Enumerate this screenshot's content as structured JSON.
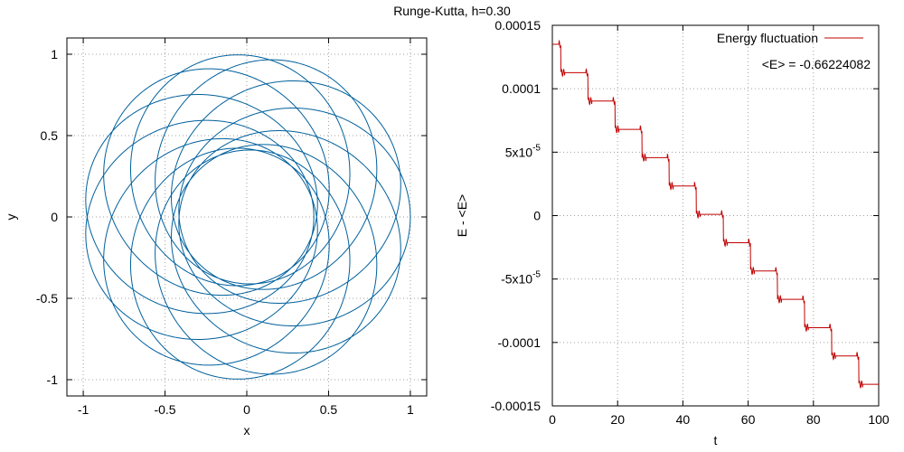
{
  "title": "Runge-Kutta, h=0.30",
  "chart_data": [
    {
      "type": "line",
      "xlabel": "x",
      "ylabel": "y",
      "xlim": [
        -1.1,
        1.1
      ],
      "ylim": [
        -1.1,
        1.1
      ],
      "xticks": [
        -1,
        -0.5,
        0,
        0.5,
        1
      ],
      "xtick_labels": [
        "-1",
        "-0.5",
        "0",
        "0.5",
        "1"
      ],
      "yticks": [
        -1,
        -0.5,
        0,
        0.5,
        1
      ],
      "ytick_labels": [
        "-1",
        "-0.5",
        "0",
        "0.5",
        "1"
      ],
      "grid": true,
      "series": [
        {
          "color": "#00609c",
          "orbit": {
            "aphelion": 1.0,
            "perihelion": 0.41,
            "start_angle_deg": 0,
            "precession_deg_per_orbit": 30,
            "revolutions": 12
          }
        }
      ]
    },
    {
      "type": "line",
      "xlabel": "t",
      "ylabel": "E - <E>",
      "xlim": [
        0,
        100
      ],
      "ylim": [
        -0.00015,
        0.00015
      ],
      "xticks": [
        0,
        20,
        40,
        60,
        80,
        100
      ],
      "xtick_labels": [
        "0",
        "20",
        "40",
        "60",
        "80",
        "100"
      ],
      "yticks": [
        0.00015,
        0.0001,
        5e-05,
        0,
        -5e-05,
        -0.0001,
        -0.00015
      ],
      "ytick_labels": [
        {
          "base": "0.00015",
          "exp": ""
        },
        {
          "base": "0.0001",
          "exp": ""
        },
        {
          "base": "5x10",
          "exp": "-5"
        },
        {
          "base": "0",
          "exp": ""
        },
        {
          "base": "-5x10",
          "exp": "-5"
        },
        {
          "base": "-0.0001",
          "exp": ""
        },
        {
          "base": "-0.00015",
          "exp": ""
        }
      ],
      "grid": true,
      "legend": {
        "position": "top-right"
      },
      "annotation": "<E> = -0.66224082",
      "series": [
        {
          "name": "Energy fluctuation",
          "color": "#c00000",
          "trend": {
            "start": 0.000135,
            "end": -0.000133
          },
          "steps": {
            "count": 12,
            "period": 8.3,
            "first_at": 2.6
          }
        }
      ]
    }
  ]
}
